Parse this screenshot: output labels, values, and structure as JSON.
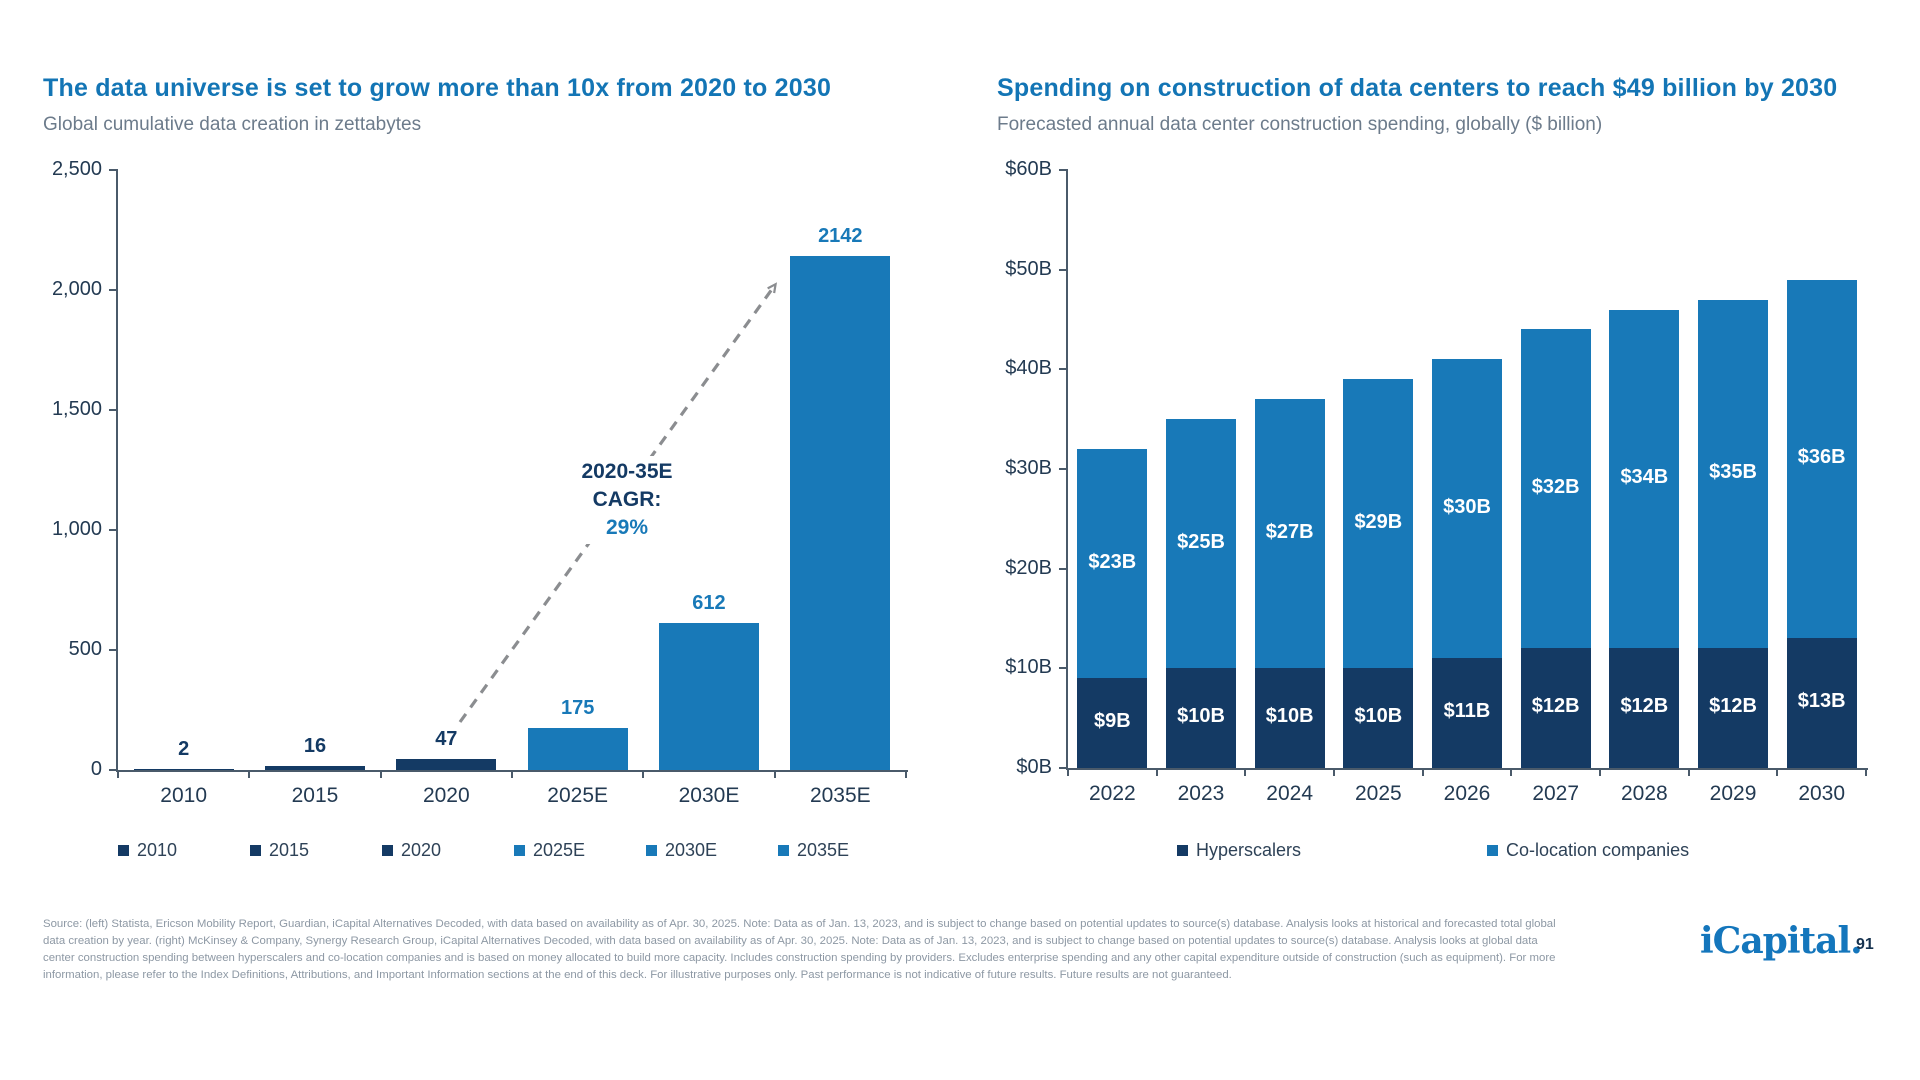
{
  "slide": {
    "colors": {
      "accent_blue": "#1375B5",
      "bar_light_blue": "#1879B8",
      "bar_dark_navy": "#143A64",
      "axis_text": "#233A52",
      "subtitle_gray": "#6C7B8B",
      "footer_gray": "#8D98A4",
      "arrow_gray": "#8B8D90"
    },
    "footer_lines": [
      "Source: (left) Statista, Ericson Mobility Report, Guardian, iCapital Alternatives Decoded, with data based on availability as of Apr. 30, 2025. Note: Data as of Jan. 13, 2023, and is subject to change based on potential updates to source(s) database. Analysis looks at historical and forecasted total global",
      "data creation by year. (right) McKinsey & Company, Synergy Research Group, iCapital Alternatives Decoded, with data based on availability as of Apr. 30, 2025. Note: Data as of Jan. 13, 2023, and is subject to change based on potential updates to source(s) database. Analysis looks at global data",
      "center construction spending between hyperscalers and co-location companies and is based on money allocated to build more capacity. Includes construction spending by providers. Excludes enterprise spending and any other capital expenditure outside of construction (such as equipment). For more",
      "information, please refer to the Index Definitions, Attributions, and Important Information sections at the end of this deck. For illustrative purposes only. Past performance is not indicative of future results. Future results are not guaranteed."
    ],
    "logo_text": "iCapital.",
    "page_number": "91"
  },
  "chart_data": [
    {
      "type": "bar",
      "title": "The data universe is set to grow more than 10x from 2020 to 2030",
      "subtitle": "Global cumulative data creation in zettabytes",
      "categories": [
        "2010",
        "2015",
        "2020",
        "2025E",
        "2030E",
        "2035E"
      ],
      "values": [
        2,
        16,
        47,
        175,
        612,
        2142
      ],
      "value_labels": [
        "2",
        "16",
        "47",
        "175",
        "612",
        "2142"
      ],
      "bar_colors": [
        "#143A64",
        "#143A64",
        "#143A64",
        "#1879B8",
        "#1879B8",
        "#1879B8"
      ],
      "label_colors": [
        "#143A64",
        "#143A64",
        "#143A64",
        "#1879B8",
        "#1879B8",
        "#1879B8"
      ],
      "ylim": [
        0,
        2500
      ],
      "yticks": [
        0,
        500,
        1000,
        1500,
        2000,
        2500
      ],
      "ytick_labels": [
        "0",
        "500",
        "1,000",
        "1,500",
        "2,000",
        "2,500"
      ],
      "grid": "off",
      "legend_position": "bottom",
      "legend": [
        {
          "label": "2010",
          "color": "#143A64"
        },
        {
          "label": "2015",
          "color": "#143A64"
        },
        {
          "label": "2020",
          "color": "#143A64"
        },
        {
          "label": "2025E",
          "color": "#1879B8"
        },
        {
          "label": "2030E",
          "color": "#1879B8"
        },
        {
          "label": "2035E",
          "color": "#1879B8"
        }
      ],
      "annotation": {
        "lines": [
          "2020-35E",
          "CAGR:",
          "29%"
        ],
        "line_colors": [
          "#143A64",
          "#143A64",
          "#1879B8"
        ]
      },
      "arrow": {
        "from": [
          460,
          722
        ],
        "to": [
          775,
          285
        ],
        "color": "#8B8D90",
        "style": "dashed"
      }
    },
    {
      "type": "stacked-bar",
      "title": "Spending on construction of data centers to reach $49 billion by 2030",
      "subtitle": "Forecasted annual data center construction spending, globally ($ billion)",
      "categories": [
        "2022",
        "2023",
        "2024",
        "2025",
        "2026",
        "2027",
        "2028",
        "2029",
        "2030"
      ],
      "series": [
        {
          "name": "Hyperscalers",
          "color": "#143A64",
          "values": [
            9,
            10,
            10,
            10,
            11,
            12,
            12,
            12,
            13
          ],
          "labels": [
            "$9B",
            "$10B",
            "$10B",
            "$10B",
            "$11B",
            "$12B",
            "$12B",
            "$12B",
            "$13B"
          ]
        },
        {
          "name": "Co-location companies",
          "color": "#1879B8",
          "values": [
            23,
            25,
            27,
            29,
            30,
            32,
            34,
            35,
            36
          ],
          "labels": [
            "$23B",
            "$25B",
            "$27B",
            "$29B",
            "$30B",
            "$32B",
            "$34B",
            "$35B",
            "$36B"
          ]
        }
      ],
      "totals": [
        32,
        35,
        37,
        39,
        41,
        44,
        46,
        47,
        49
      ],
      "ylim": [
        0,
        60
      ],
      "yticks": [
        0,
        10,
        20,
        30,
        40,
        50,
        60
      ],
      "ytick_labels": [
        "$0B",
        "$10B",
        "$20B",
        "$30B",
        "$40B",
        "$50B",
        "$60B"
      ],
      "grid": "off",
      "legend_position": "bottom"
    }
  ]
}
